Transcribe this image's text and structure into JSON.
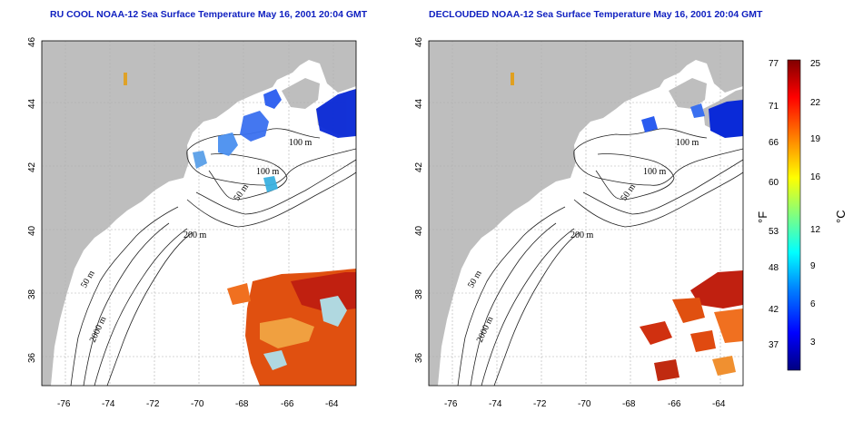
{
  "maps": [
    {
      "title": "RU COOL NOAA-12 Sea Surface Temperature May 16, 2001 20:04 GMT",
      "variant": "raw"
    },
    {
      "title": "DECLOUDED NOAA-12 Sea Surface Temperature May 16, 2001 20:04 GMT",
      "variant": "declouded"
    }
  ],
  "axes": {
    "lon_ticks": [
      "-76",
      "-74",
      "-72",
      "-70",
      "-68",
      "-66",
      "-64"
    ],
    "lat_ticks": [
      "36",
      "38",
      "40",
      "42",
      "44",
      "46"
    ],
    "lon_range": [
      -77,
      -63
    ],
    "lat_range": [
      35,
      46
    ]
  },
  "contours": {
    "labels": [
      "100 m",
      "100 m",
      "50 m",
      "200 m",
      "50 m",
      "2000 m"
    ]
  },
  "colorbar": {
    "fahrenheit_ticks": [
      "77",
      "71",
      "66",
      "60",
      "53",
      "48",
      "42",
      "37"
    ],
    "celsius_ticks": [
      "25",
      "22",
      "19",
      "16",
      "12",
      "9",
      "6",
      "3"
    ],
    "fahrenheit_unit": "°F",
    "celsius_unit": "°C",
    "range_c": [
      0,
      25
    ],
    "colors": [
      "#000080",
      "#0000ff",
      "#0080ff",
      "#00ffff",
      "#80ff80",
      "#ffff00",
      "#ff8000",
      "#ff0000",
      "#800000"
    ]
  },
  "colors": {
    "land": "#bebebe",
    "grid": "#b0b0b0",
    "title": "#1020c0"
  }
}
